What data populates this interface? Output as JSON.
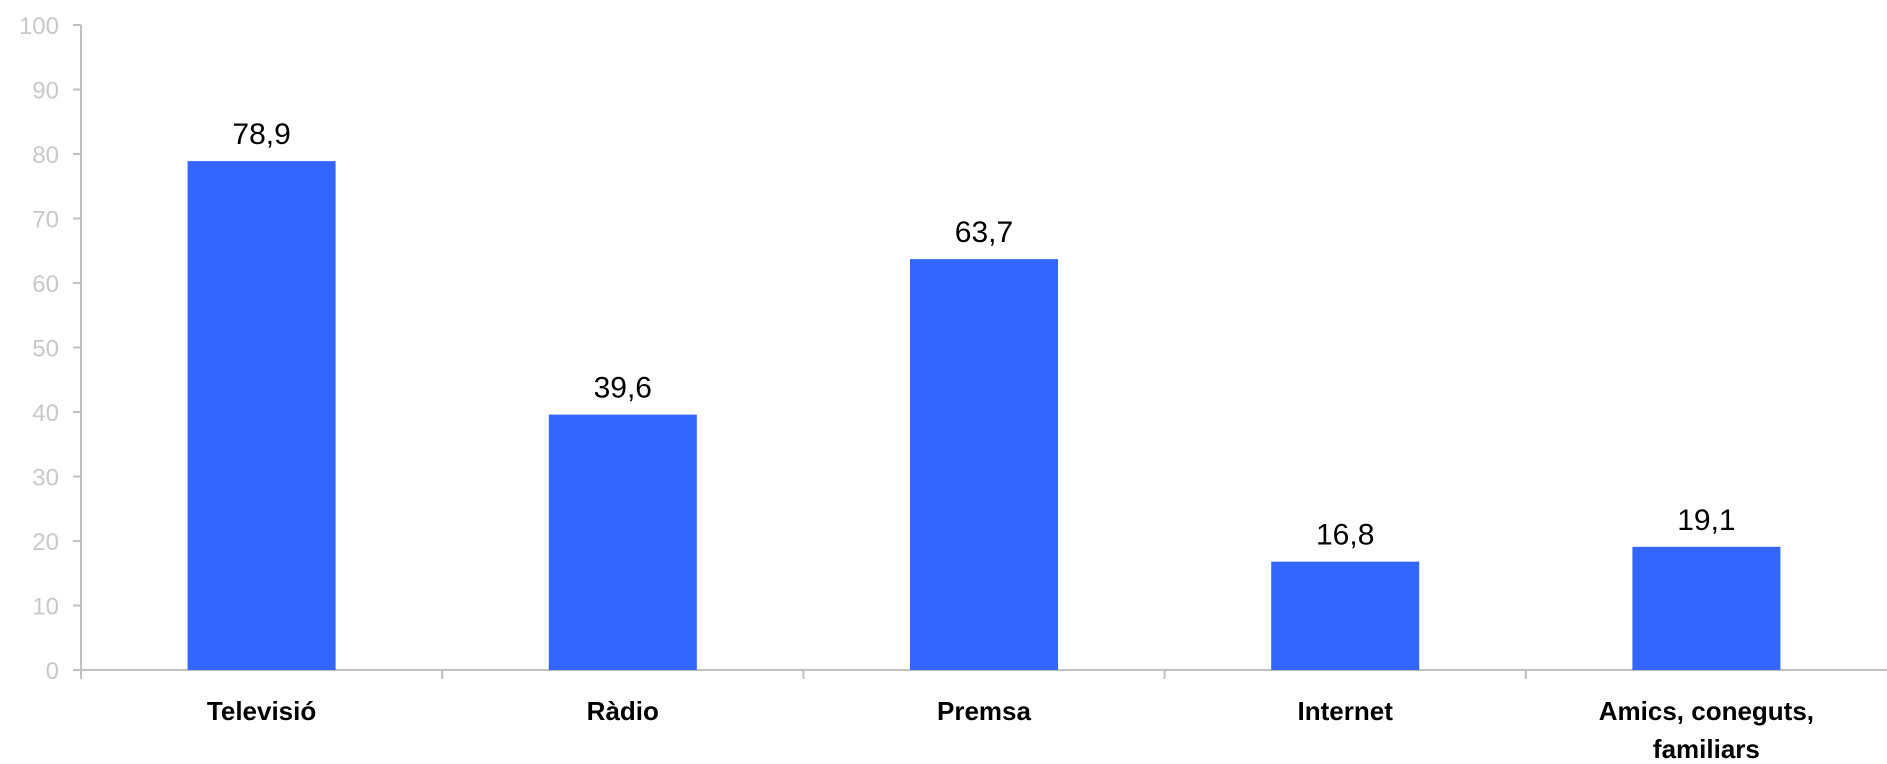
{
  "chart_data": {
    "type": "bar",
    "categories": [
      [
        "Televisió"
      ],
      [
        "Ràdio"
      ],
      [
        "Premsa"
      ],
      [
        "Internet"
      ],
      [
        "Amics, coneguts,",
        "familiars"
      ]
    ],
    "values": [
      78.9,
      39.6,
      63.7,
      16.8,
      19.1
    ],
    "value_labels": [
      "78,9",
      "39,6",
      "63,7",
      "16,8",
      "19,1"
    ],
    "ylim": [
      0,
      100
    ],
    "yticks": [
      0,
      10,
      20,
      30,
      40,
      50,
      60,
      70,
      80,
      90,
      100
    ],
    "title": "",
    "xlabel": "",
    "ylabel": "",
    "grid": false,
    "legend": "none",
    "colors": {
      "bar": "#3366ff",
      "axis": "#c0c0c0",
      "y_tick_text": "#c8c8c8",
      "text": "#000000"
    }
  }
}
